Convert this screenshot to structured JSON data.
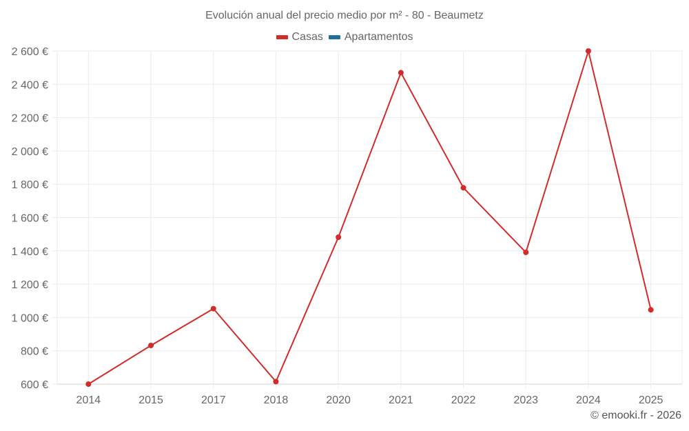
{
  "chart": {
    "title": "Evolución anual del precio medio por m² - 80 - Beaumetz",
    "credit": "© emooki.fr - 2026",
    "colors": {
      "casas": "#d42a2a",
      "apartamentos": "#1f6fa3",
      "grid": "#ebebeb",
      "axis": "#d0d0d0"
    },
    "legend": [
      {
        "label": "Casas",
        "color": "#d42a2a"
      },
      {
        "label": "Apartamentos",
        "color": "#1f6fa3"
      }
    ]
  },
  "chart_data": {
    "type": "line",
    "title": "Evolución anual del precio medio por m² - 80 - Beaumetz",
    "xlabel": "",
    "ylabel": "",
    "categories": [
      "2014",
      "2015",
      "2017",
      "2018",
      "2020",
      "2021",
      "2022",
      "2023",
      "2024",
      "2025"
    ],
    "series": [
      {
        "name": "Casas",
        "color": "#d42a2a",
        "values": [
          600,
          832,
          1053,
          615,
          1482,
          2470,
          1779,
          1391,
          2600,
          1046
        ]
      },
      {
        "name": "Apartamentos",
        "color": "#1f6fa3",
        "values": []
      }
    ],
    "ylim": [
      600,
      2600
    ],
    "yticks": [
      600,
      800,
      1000,
      1200,
      1400,
      1600,
      1800,
      2000,
      2200,
      2400,
      2600
    ],
    "ytick_labels": [
      "600 €",
      "800 €",
      "1 000 €",
      "1 200 €",
      "1 400 €",
      "1 600 €",
      "1 800 €",
      "2 000 €",
      "2 200 €",
      "2 400 €",
      "2 600 €"
    ],
    "grid": true,
    "legend_position": "top"
  }
}
